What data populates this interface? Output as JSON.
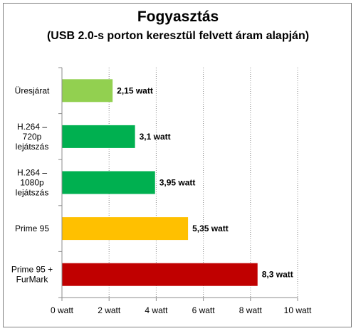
{
  "chart_data": {
    "type": "bar",
    "orientation": "horizontal",
    "title": "Fogyasztás",
    "subtitle": "(USB 2.0-s porton keresztül felvett áram alapján)",
    "categories": [
      [
        "Üresjárat"
      ],
      [
        "H.264 –",
        "720p",
        "lejátszás"
      ],
      [
        "H.264 –",
        "1080p",
        "lejátszás"
      ],
      [
        "Prime 95"
      ],
      [
        "Prime 95 +",
        "FurMark"
      ]
    ],
    "values": [
      2.15,
      3.1,
      3.95,
      5.35,
      8.3
    ],
    "data_labels": [
      "2,15 watt",
      "3,1 watt",
      "3,95 watt",
      "5,35 watt",
      "8,3 watt"
    ],
    "colors": [
      "#92d050",
      "#00b050",
      "#00b050",
      "#ffc000",
      "#c00000"
    ],
    "xlim": [
      0,
      10
    ],
    "x_ticks": [
      0,
      2,
      4,
      6,
      8,
      10
    ],
    "x_tick_labels": [
      "0 watt",
      "2 watt",
      "4 watt",
      "6 watt",
      "8 watt",
      "10 watt"
    ],
    "xlabel": "",
    "ylabel": "",
    "grid": "vertical-dashed",
    "legend": "none"
  }
}
